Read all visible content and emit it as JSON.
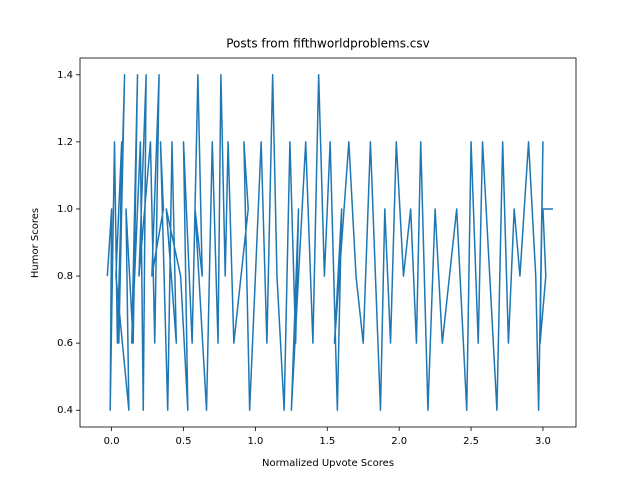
{
  "chart_data": {
    "type": "line",
    "title": "Posts from fifthworldproblems.csv",
    "x_label": "Normalized Upvote Scores",
    "y_label": "Humor Scores",
    "xlim": [
      -0.22,
      3.23
    ],
    "ylim": [
      0.35,
      1.45
    ],
    "xticks": [
      {
        "value": 0,
        "label": "0.0"
      },
      0.5,
      {
        "value": 1,
        "label": "1.0"
      },
      1.5,
      {
        "value": 2,
        "label": "2.0"
      },
      2.5,
      {
        "value": 3,
        "label": "3.0"
      }
    ],
    "yticks": [
      0.4,
      0.6,
      0.8,
      {
        "value": 1,
        "label": "1.0"
      },
      1.2,
      1.4
    ],
    "series": [
      {
        "color": "#1f77b4",
        "x": [
          -0.03,
          0.0,
          -0.01,
          0.02,
          0.04,
          0.09,
          0.05,
          0.07,
          0.03,
          0.12,
          0.1,
          0.15,
          0.18,
          0.14,
          0.2,
          0.22,
          0.24,
          0.19,
          0.27,
          0.3,
          0.33,
          0.28,
          0.36,
          0.34,
          0.39,
          0.42,
          0.45,
          0.38,
          0.48,
          0.53,
          0.5,
          0.56,
          0.6,
          0.63,
          0.58,
          0.66,
          0.7,
          0.74,
          0.76,
          0.79,
          0.81,
          0.85,
          0.95,
          0.92,
          0.96,
          1.0,
          1.04,
          1.08,
          1.12,
          1.15,
          1.2,
          1.24,
          1.28,
          1.3,
          1.25,
          1.35,
          1.4,
          1.44,
          1.48,
          1.52,
          1.57,
          1.6,
          1.55,
          1.65,
          1.7,
          1.75,
          1.8,
          1.87,
          1.9,
          1.94,
          1.98,
          2.03,
          2.08,
          2.12,
          2.15,
          2.2,
          2.25,
          2.3,
          2.35,
          2.4,
          2.47,
          2.5,
          2.55,
          2.58,
          2.63,
          2.68,
          2.72,
          2.76,
          2.8,
          2.84,
          2.9,
          2.95,
          2.97,
          3.0,
          2.98,
          3.02,
          3.0,
          3.07
        ],
        "values": [
          0.8,
          1.0,
          0.4,
          1.2,
          0.6,
          1.4,
          0.6,
          1.2,
          0.8,
          0.4,
          1.0,
          0.6,
          1.4,
          0.6,
          1.2,
          0.4,
          1.4,
          0.8,
          1.2,
          0.6,
          1.4,
          0.8,
          1.0,
          1.2,
          0.4,
          1.2,
          0.6,
          1.0,
          0.8,
          0.4,
          1.2,
          0.6,
          1.4,
          0.8,
          1.0,
          0.4,
          1.2,
          0.6,
          1.4,
          0.8,
          1.2,
          0.6,
          1.0,
          1.2,
          0.4,
          0.8,
          1.2,
          0.6,
          1.4,
          0.8,
          0.4,
          1.2,
          0.6,
          1.0,
          0.4,
          1.2,
          0.6,
          1.4,
          0.8,
          1.2,
          0.4,
          1.0,
          0.6,
          1.2,
          0.8,
          0.6,
          1.2,
          0.4,
          1.0,
          0.6,
          1.2,
          0.8,
          1.0,
          0.6,
          1.2,
          0.4,
          1.0,
          0.6,
          0.8,
          1.0,
          0.4,
          1.2,
          0.6,
          1.2,
          0.8,
          0.4,
          1.2,
          0.6,
          1.0,
          0.8,
          1.2,
          0.8,
          0.4,
          1.2,
          0.6,
          0.8,
          1.0,
          1.0
        ]
      }
    ]
  }
}
